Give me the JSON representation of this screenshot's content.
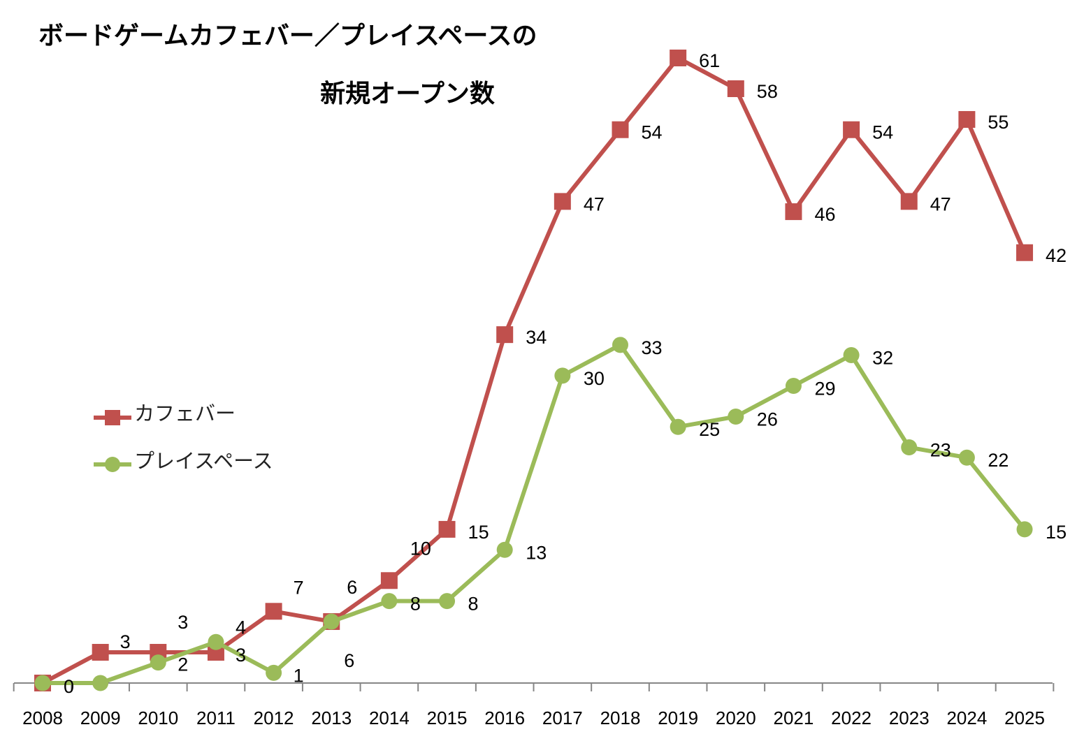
{
  "chart_data": {
    "type": "line",
    "title_lines": [
      "ボードゲームカフェバー／プレイスペースの",
      "新規オープン数"
    ],
    "categories": [
      "2008",
      "2009",
      "2010",
      "2011",
      "2012",
      "2013",
      "2014",
      "2015",
      "2016",
      "2017",
      "2018",
      "2019",
      "2020",
      "2021",
      "2022",
      "2023",
      "2024",
      "2025"
    ],
    "series": [
      {
        "name": "カフェバー",
        "color": "#C0504D",
        "marker": "square",
        "values": [
          0,
          3,
          3,
          3,
          7,
          6,
          10,
          15,
          34,
          47,
          54,
          61,
          58,
          46,
          54,
          47,
          55,
          42
        ]
      },
      {
        "name": "プレイスペース",
        "color": "#9BBB59",
        "marker": "circle",
        "values": [
          0,
          0,
          2,
          4,
          1,
          6,
          8,
          8,
          13,
          30,
          33,
          25,
          26,
          29,
          32,
          23,
          22,
          15
        ]
      }
    ],
    "xlabel": "",
    "ylabel": "",
    "ylim": [
      0,
      61
    ],
    "grid": false,
    "legend": "left"
  }
}
